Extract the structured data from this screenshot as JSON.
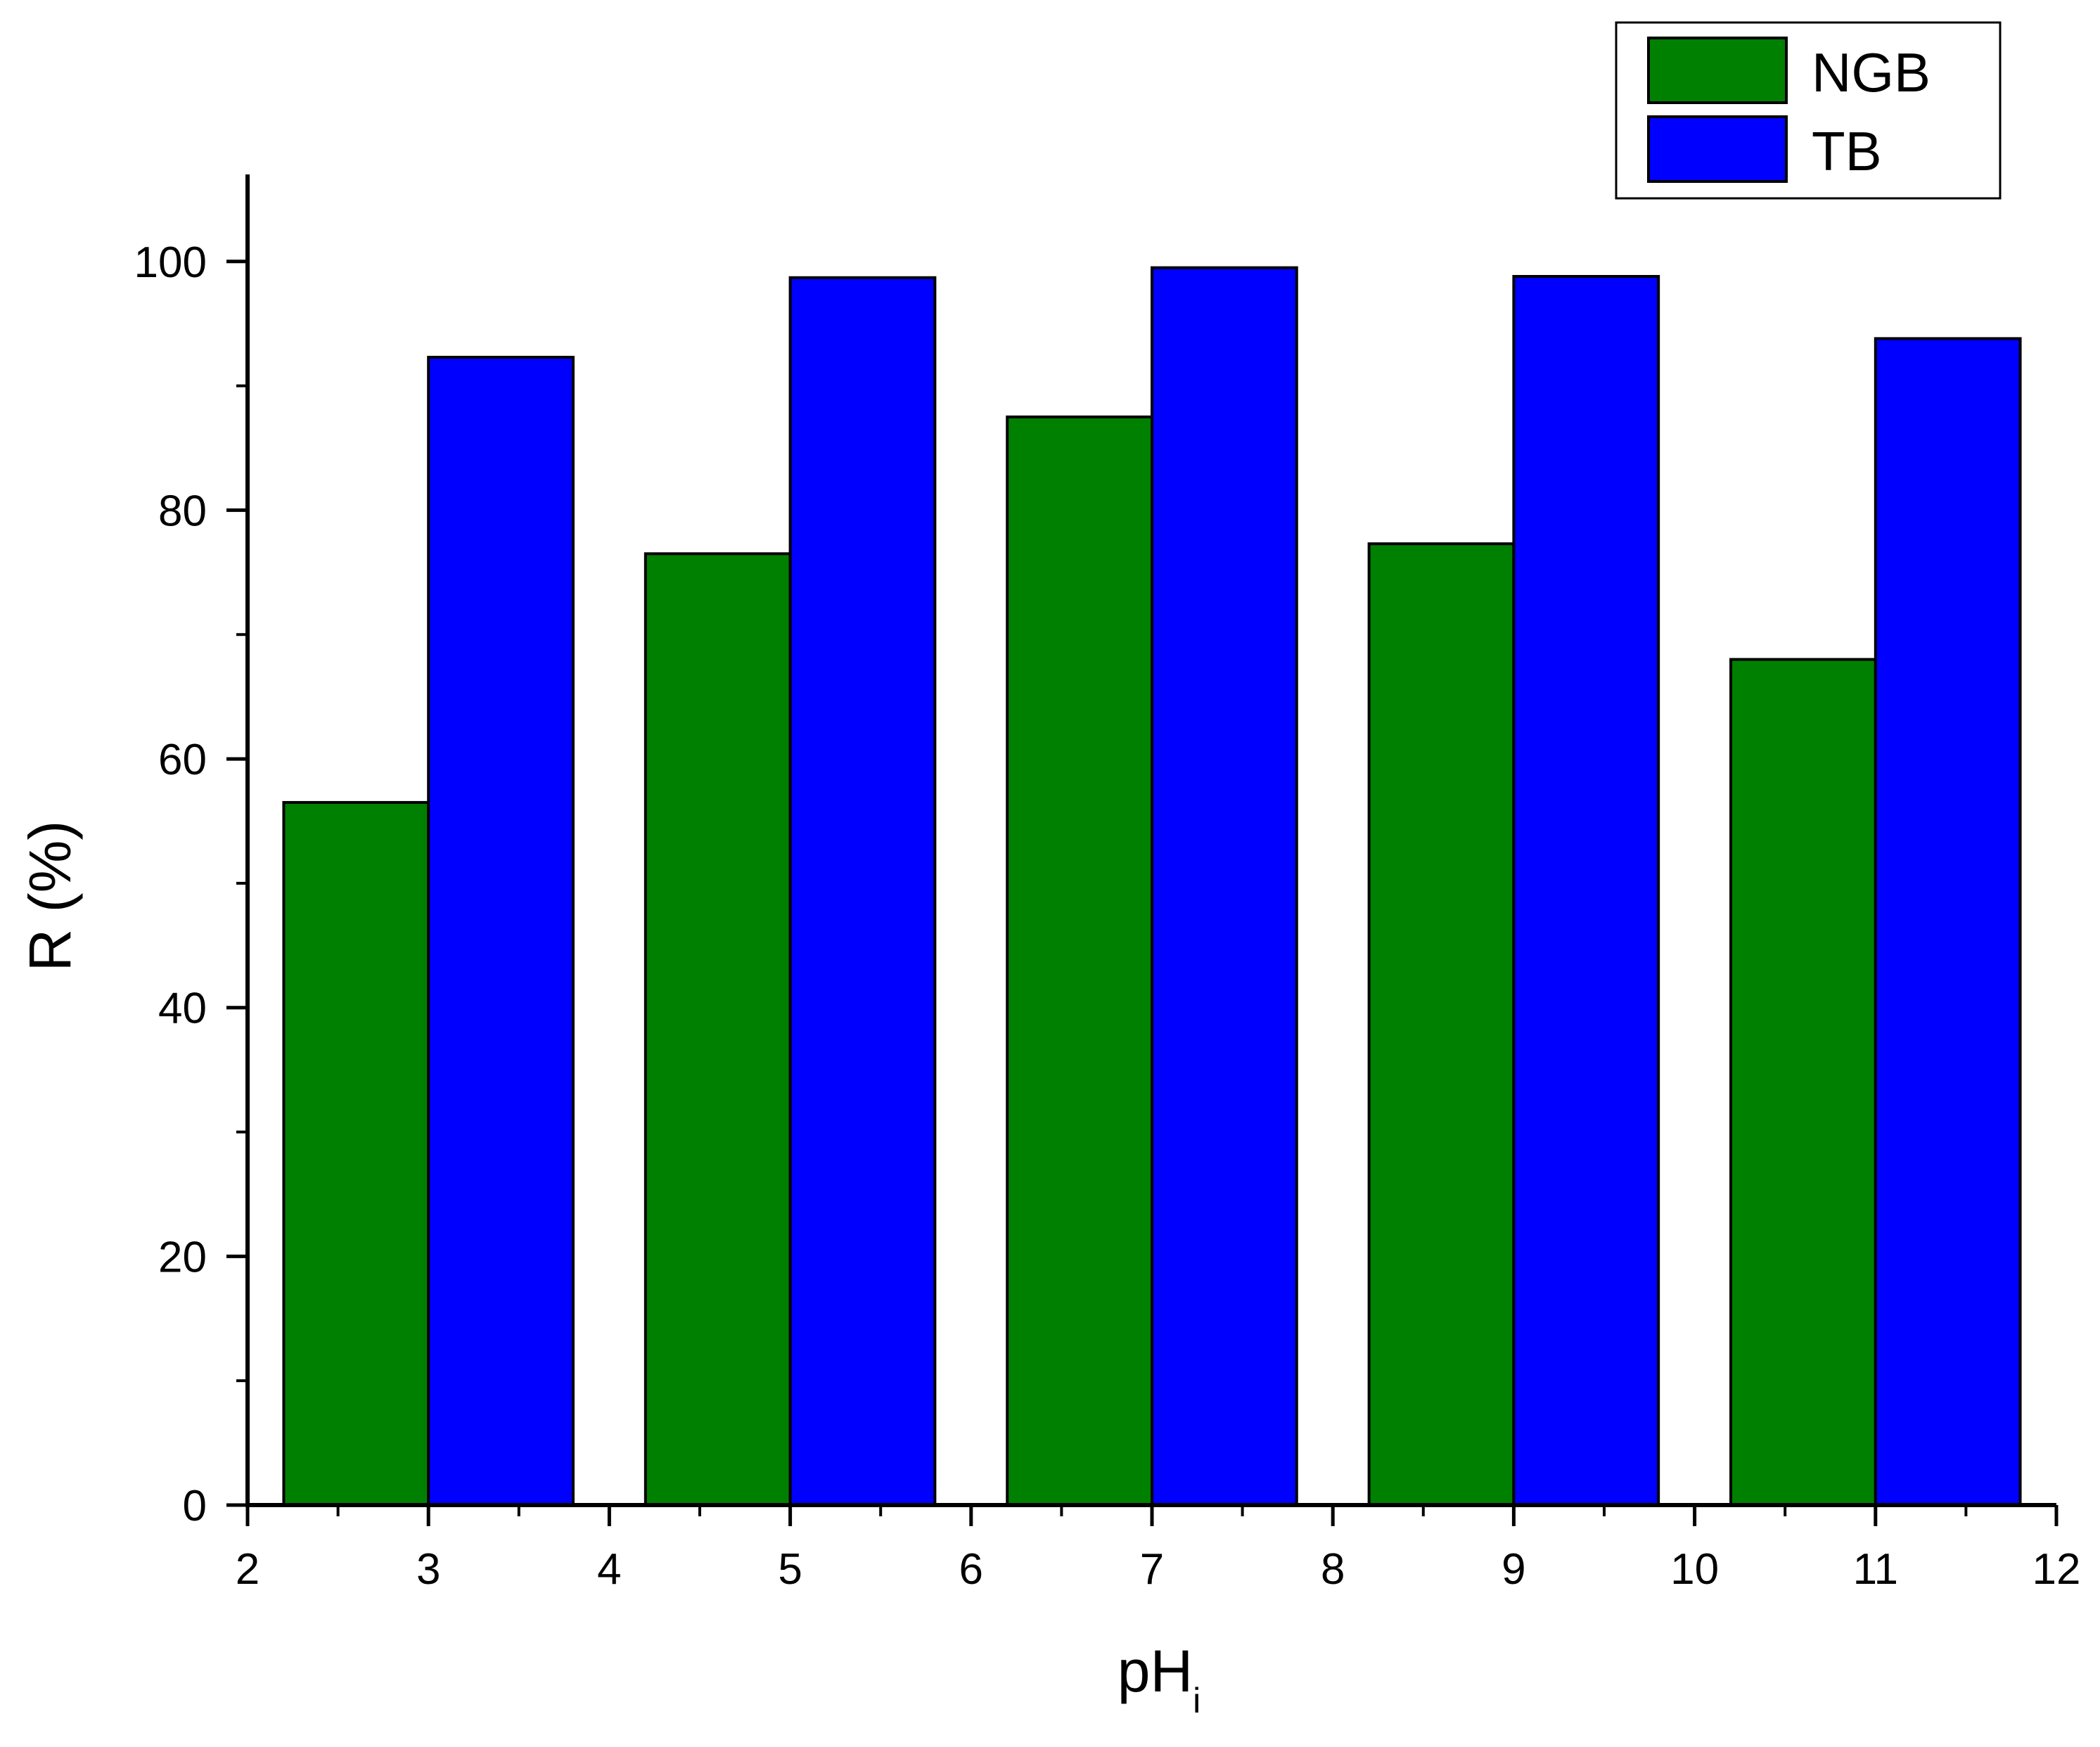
{
  "chart_data": {
    "type": "bar",
    "x": [
      3,
      5,
      7,
      9,
      11
    ],
    "series": [
      {
        "name": "NGB",
        "values": [
          56.5,
          76.5,
          87.5,
          77.3,
          68.0
        ],
        "color": "#008000"
      },
      {
        "name": "TB",
        "values": [
          92.3,
          98.7,
          99.5,
          98.8,
          93.8
        ],
        "color": "#0000FF"
      }
    ],
    "xlim": [
      2,
      12
    ],
    "ylim": [
      0,
      107
    ],
    "xticks": [
      2,
      3,
      4,
      5,
      6,
      7,
      8,
      9,
      10,
      11,
      12
    ],
    "yticks": [
      0,
      20,
      40,
      60,
      80,
      100
    ],
    "xlabel_main": "pH",
    "xlabel_sub": "i",
    "ylabel": "R (%)",
    "title": "",
    "grid": false,
    "legend_position": "top-right"
  }
}
